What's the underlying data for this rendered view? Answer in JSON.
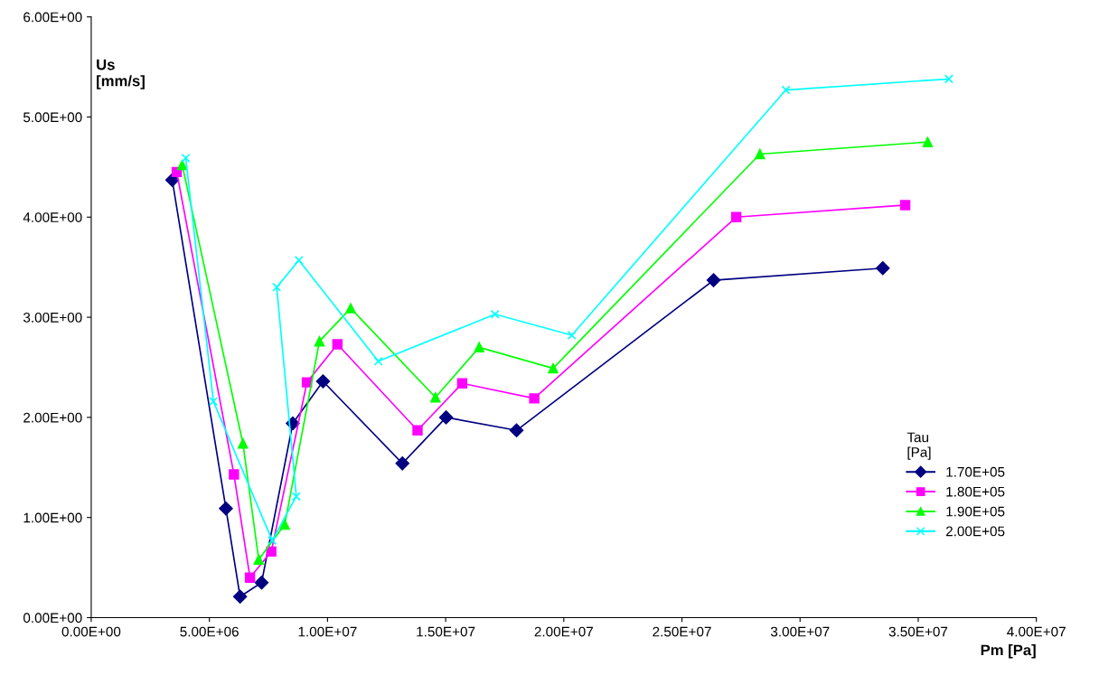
{
  "chart_data": {
    "type": "line",
    "xlabel": "Pm [Pa]",
    "ylabel": "Us\n[mm/s]",
    "legend_title": "Tau\n[Pa]",
    "legend": "right",
    "grid": false,
    "line_style": "solid",
    "xlim": [
      0,
      40000000.0
    ],
    "ylim": [
      0,
      6
    ],
    "xticks": [
      {
        "value": 0,
        "label": "0.00E+00"
      },
      {
        "value": 5000000.0,
        "label": "5.00E+06"
      },
      {
        "value": 10000000.0,
        "label": "1.00E+07"
      },
      {
        "value": 15000000.0,
        "label": "1.50E+07"
      },
      {
        "value": 20000000.0,
        "label": "2.00E+07"
      },
      {
        "value": 25000000.0,
        "label": "2.50E+07"
      },
      {
        "value": 30000000.0,
        "label": "3.00E+07"
      },
      {
        "value": 35000000.0,
        "label": "3.50E+07"
      },
      {
        "value": 40000000.0,
        "label": "4.00E+07"
      }
    ],
    "yticks": [
      {
        "value": 0,
        "label": "0.00E+00"
      },
      {
        "value": 1,
        "label": "1.00E+00"
      },
      {
        "value": 2,
        "label": "2.00E+00"
      },
      {
        "value": 3,
        "label": "3.00E+00"
      },
      {
        "value": 4,
        "label": "4.00E+00"
      },
      {
        "value": 5,
        "label": "5.00E+00"
      },
      {
        "value": 6,
        "label": "6.00E+00"
      }
    ],
    "series": [
      {
        "name": "1.70E+05",
        "color": "#000080",
        "marker": "diamond",
        "x": [
          3430000.0,
          5700000.0,
          6300000.0,
          7210000.0,
          8530000.0,
          9810000.0,
          13170000.0,
          15020000.0,
          18000000.0,
          26340000.0,
          33500000.0
        ],
        "values": [
          4.37,
          1.09,
          0.21,
          0.35,
          1.94,
          2.36,
          1.54,
          2.0,
          1.87,
          3.37,
          3.49
        ]
      },
      {
        "name": "1.80E+05",
        "color": "#ff00ff",
        "marker": "square",
        "x": [
          3620000.0,
          6040000.0,
          6720000.0,
          7620000.0,
          9130000.0,
          10420000.0,
          13810000.0,
          15700000.0,
          18750000.0,
          27300000.0,
          34450000.0
        ],
        "values": [
          4.45,
          1.43,
          0.4,
          0.66,
          2.35,
          2.73,
          1.87,
          2.34,
          2.19,
          4.0,
          4.12
        ]
      },
      {
        "name": "1.90E+05",
        "color": "#00ff00",
        "marker": "triangle",
        "x": [
          3850000.0,
          6420000.0,
          7090000.0,
          8190000.0,
          9660000.0,
          10980000.0,
          14570000.0,
          16420000.0,
          19550000.0,
          28300000.0,
          35400000.0
        ],
        "values": [
          4.52,
          1.74,
          0.58,
          0.93,
          2.76,
          3.09,
          2.2,
          2.7,
          2.49,
          4.63,
          4.75
        ]
      },
      {
        "name": "2.00E+05",
        "color": "#00ffff",
        "marker": "cross",
        "x": [
          4000000.0,
          5170000.0,
          7660000.0,
          8680000.0,
          7850000.0,
          8790000.0,
          12150000.0,
          17090000.0,
          20340000.0,
          29400000.0,
          36300000.0
        ],
        "values": [
          4.59,
          2.16,
          0.77,
          1.21,
          3.3,
          3.57,
          2.56,
          3.03,
          2.82,
          5.27,
          5.38
        ]
      }
    ]
  }
}
